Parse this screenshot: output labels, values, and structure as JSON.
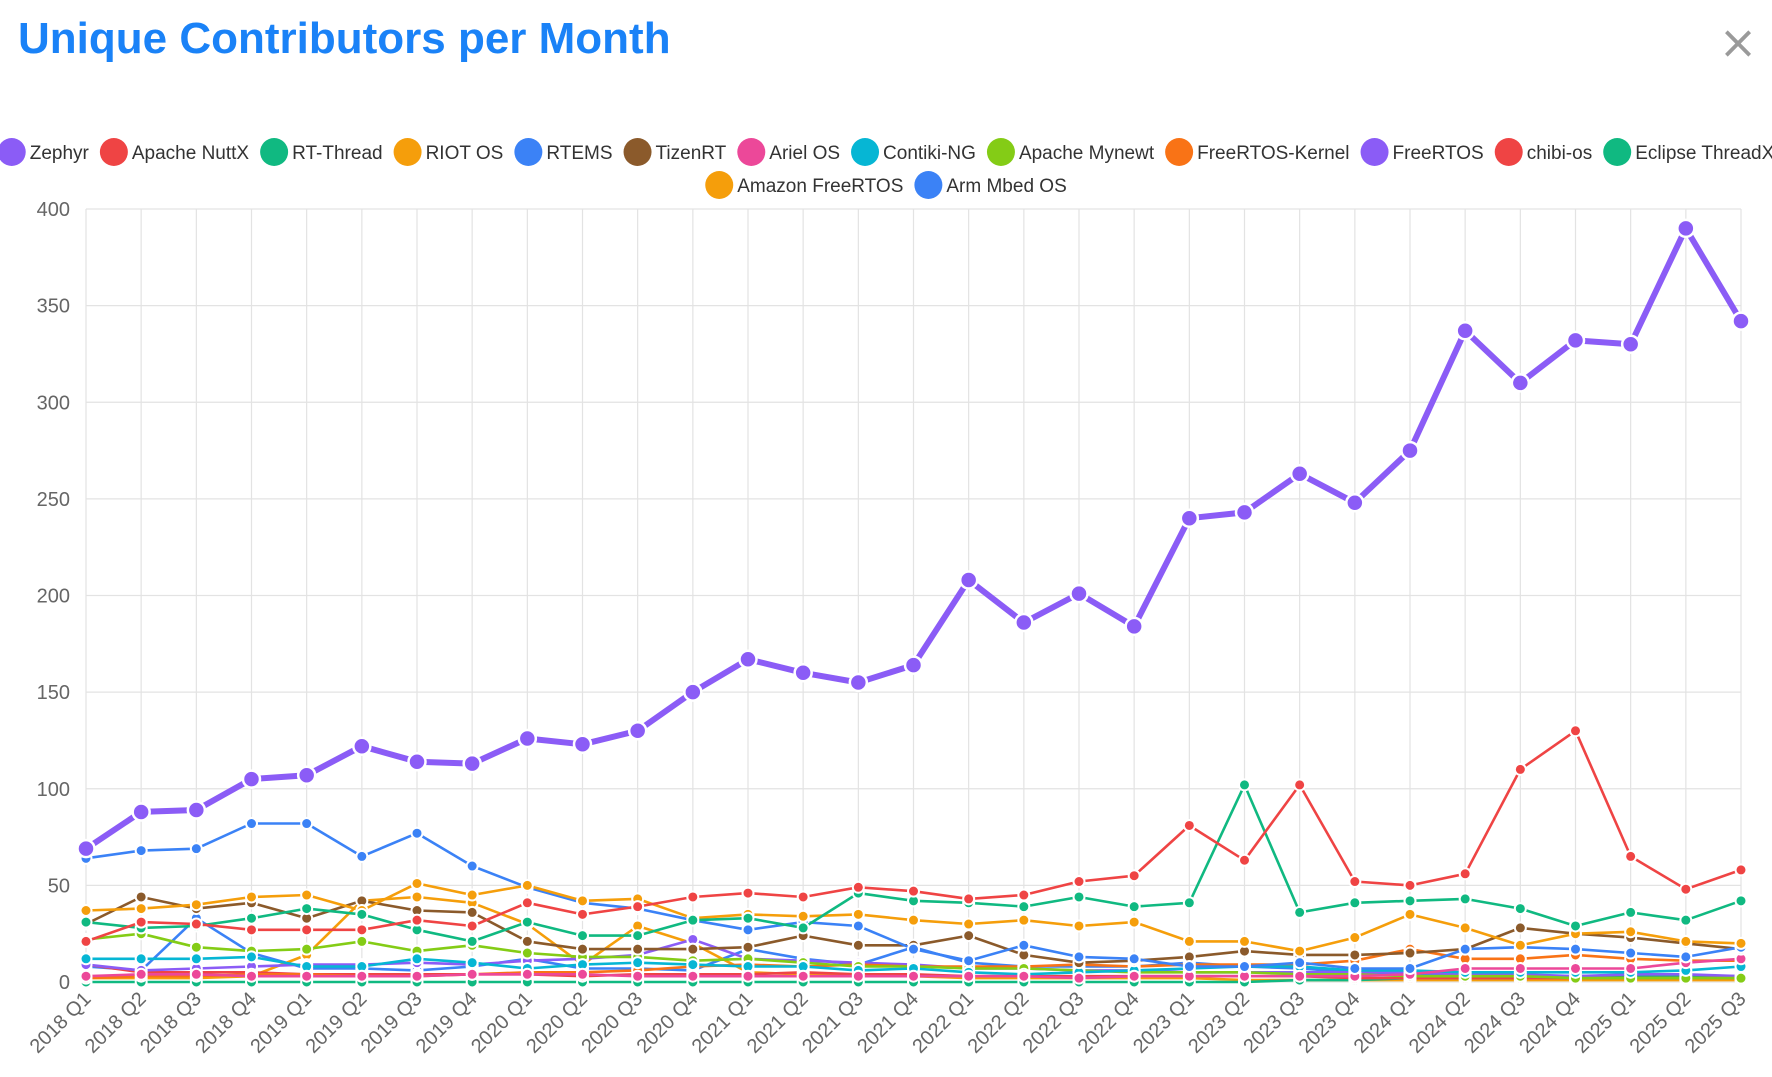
{
  "title": "Unique Contributors per Month",
  "close_label": "×",
  "chart_data": {
    "type": "line",
    "categories": [
      "2018 Q1",
      "2018 Q2",
      "2018 Q3",
      "2018 Q4",
      "2019 Q1",
      "2019 Q2",
      "2019 Q3",
      "2019 Q4",
      "2020 Q1",
      "2020 Q2",
      "2020 Q3",
      "2020 Q4",
      "2021 Q1",
      "2021 Q2",
      "2021 Q3",
      "2021 Q4",
      "2022 Q1",
      "2022 Q2",
      "2022 Q3",
      "2022 Q4",
      "2023 Q1",
      "2023 Q2",
      "2023 Q3",
      "2023 Q4",
      "2024 Q1",
      "2024 Q2",
      "2024 Q3",
      "2024 Q4",
      "2025 Q1",
      "2025 Q2",
      "2025 Q3"
    ],
    "ylim": [
      0,
      400
    ],
    "yticks": [
      0,
      50,
      100,
      150,
      200,
      250,
      300,
      350,
      400
    ],
    "grid": true,
    "legend_position": "top",
    "series": [
      {
        "name": "Zephyr",
        "color": "#8b5cf6",
        "values": [
          69,
          88,
          89,
          105,
          107,
          122,
          114,
          113,
          126,
          123,
          130,
          150,
          167,
          160,
          155,
          164,
          208,
          186,
          201,
          184,
          240,
          243,
          263,
          248,
          275,
          337,
          310,
          332,
          330,
          390,
          342
        ]
      },
      {
        "name": "Apache NuttX",
        "color": "#ef4444",
        "values": [
          21,
          31,
          30,
          27,
          27,
          27,
          32,
          29,
          41,
          35,
          39,
          44,
          46,
          44,
          49,
          47,
          43,
          45,
          52,
          55,
          81,
          63,
          102,
          52,
          50,
          56,
          110,
          130,
          65,
          48,
          58
        ]
      },
      {
        "name": "RT-Thread",
        "color": "#10b981",
        "values": [
          31,
          28,
          29,
          33,
          38,
          35,
          27,
          21,
          31,
          24,
          24,
          32,
          33,
          28,
          46,
          42,
          41,
          39,
          44,
          39,
          41,
          102,
          36,
          41,
          42,
          43,
          38,
          29,
          36,
          32,
          42
        ]
      },
      {
        "name": "RIOT OS",
        "color": "#f59e0b",
        "values": [
          37,
          38,
          40,
          44,
          45,
          37,
          51,
          45,
          50,
          42,
          43,
          33,
          35,
          34,
          35,
          32,
          30,
          32,
          29,
          31,
          21,
          21,
          16,
          23,
          35,
          28,
          19,
          25,
          26,
          21,
          20
        ]
      },
      {
        "name": "RTEMS",
        "color": "#3b82f6",
        "values": [
          64,
          68,
          69,
          82,
          82,
          65,
          77,
          60,
          49,
          41,
          38,
          32,
          27,
          31,
          29,
          17,
          11,
          19,
          13,
          12,
          8,
          8,
          10,
          7,
          7,
          17,
          18,
          17,
          15,
          13,
          18
        ]
      },
      {
        "name": "TizenRT",
        "color": "#8b5a2b",
        "values": [
          30,
          44,
          38,
          41,
          33,
          42,
          37,
          36,
          21,
          17,
          17,
          17,
          18,
          24,
          19,
          19,
          24,
          14,
          10,
          11,
          13,
          16,
          14,
          14,
          15,
          17,
          28,
          25,
          23,
          20,
          17
        ]
      },
      {
        "name": "Ariel OS",
        "color": "#ec4899",
        "values": [
          3,
          4,
          4,
          3,
          3,
          3,
          3,
          4,
          4,
          4,
          3,
          3,
          3,
          3,
          3,
          3,
          3,
          3,
          2,
          3,
          3,
          3,
          3,
          3,
          4,
          7,
          7,
          7,
          7,
          10,
          12
        ]
      },
      {
        "name": "Contiki-NG",
        "color": "#06b6d4",
        "values": [
          12,
          12,
          12,
          13,
          8,
          8,
          12,
          10,
          7,
          9,
          10,
          9,
          8,
          8,
          6,
          7,
          5,
          4,
          5,
          6,
          7,
          8,
          8,
          6,
          6,
          5,
          5,
          5,
          5,
          6,
          8
        ]
      },
      {
        "name": "Apache Mynewt",
        "color": "#84cc16",
        "values": [
          22,
          25,
          18,
          16,
          17,
          21,
          16,
          19,
          15,
          13,
          13,
          11,
          12,
          10,
          8,
          8,
          7,
          7,
          6,
          5,
          5,
          5,
          4,
          4,
          3,
          3,
          3,
          2,
          2,
          2,
          2
        ]
      },
      {
        "name": "FreeRTOS-Kernel",
        "color": "#f97316",
        "values": [
          2,
          3,
          3,
          4,
          4,
          3,
          3,
          4,
          5,
          5,
          6,
          8,
          9,
          8,
          9,
          8,
          8,
          8,
          9,
          8,
          9,
          9,
          9,
          11,
          17,
          12,
          12,
          14,
          12,
          11,
          11
        ]
      },
      {
        "name": "FreeRTOS",
        "color": "#8b5cf6",
        "values": [
          9,
          6,
          7,
          8,
          9,
          9,
          10,
          9,
          11,
          12,
          14,
          22,
          12,
          11,
          10,
          9,
          7,
          7,
          6,
          6,
          5,
          5,
          5,
          5,
          5,
          4,
          4,
          3,
          4,
          4,
          3
        ]
      },
      {
        "name": "chibi-os",
        "color": "#ef4444",
        "values": [
          9,
          5,
          5,
          5,
          4,
          4,
          4,
          4,
          4,
          3,
          4,
          4,
          4,
          5,
          4,
          4,
          3,
          3,
          3,
          3,
          3,
          3,
          3,
          2,
          2,
          2,
          2,
          2,
          2,
          2,
          2
        ]
      },
      {
        "name": "Eclipse ThreadX",
        "color": "#10b981",
        "values": [
          0,
          0,
          0,
          0,
          0,
          0,
          0,
          0,
          0,
          0,
          0,
          0,
          0,
          0,
          0,
          0,
          0,
          0,
          0,
          0,
          0,
          0,
          1,
          1,
          2,
          2,
          2,
          3,
          3,
          3,
          3
        ]
      },
      {
        "name": "Amazon FreeRTOS",
        "color": "#f59e0b",
        "values": [
          2,
          2,
          2,
          3,
          14,
          42,
          44,
          41,
          30,
          9,
          29,
          20,
          5,
          4,
          4,
          3,
          2,
          2,
          2,
          2,
          2,
          1,
          1,
          1,
          1,
          1,
          1,
          1,
          1,
          1,
          1
        ]
      },
      {
        "name": "Arm Mbed OS",
        "color": "#3b82f6",
        "values": [
          8,
          6,
          33,
          15,
          7,
          7,
          6,
          8,
          12,
          7,
          7,
          6,
          17,
          12,
          9,
          18,
          10,
          8,
          8,
          8,
          10,
          8,
          7,
          5,
          4,
          4,
          3,
          3,
          3,
          3,
          3
        ]
      }
    ]
  }
}
